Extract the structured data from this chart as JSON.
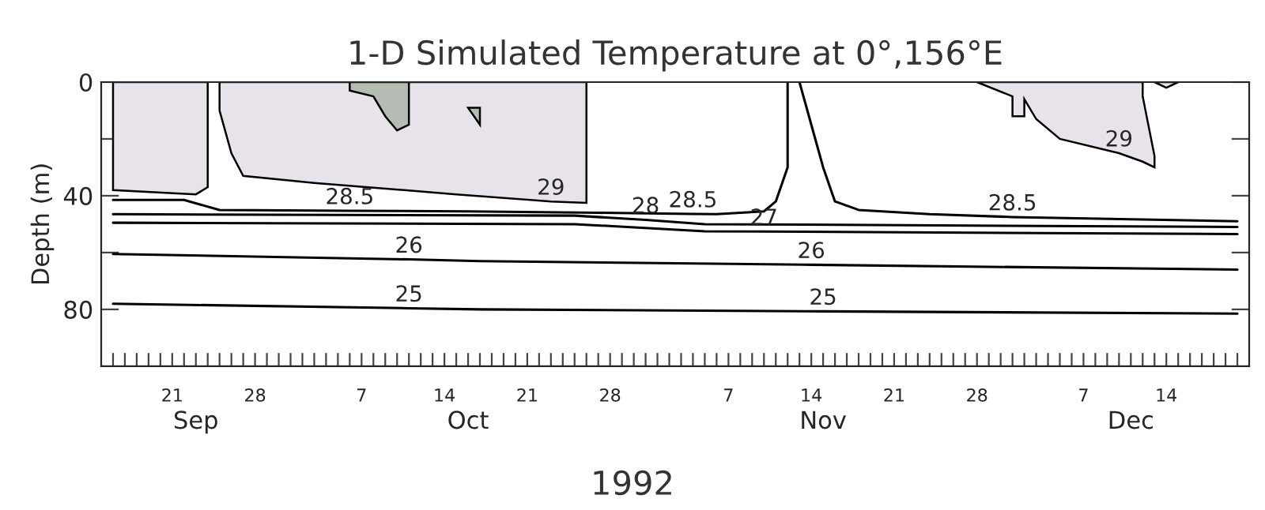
{
  "chart_data": {
    "type": "line",
    "title": "1-D Simulated Temperature at 0°,156°E",
    "xlabel": "1992",
    "ylabel": "Depth (m)",
    "xlim": [
      "1992-09-15",
      "1992-12-21"
    ],
    "ylim": [
      100,
      0
    ],
    "yticks": [
      0,
      {
        "value": 20,
        "label": null
      },
      40,
      {
        "value": 60,
        "label": null
      },
      80
    ],
    "xticks": [
      {
        "value": "1992-09-16",
        "label": null
      },
      {
        "value": "1992-09-17",
        "label": null
      },
      {
        "value": "1992-09-18",
        "label": null
      },
      {
        "value": "1992-09-19",
        "label": null
      },
      {
        "value": "1992-09-20",
        "label": null
      },
      {
        "value": "1992-09-21",
        "label": "21"
      },
      {
        "value": "1992-09-22",
        "label": null
      },
      {
        "value": "1992-09-23",
        "label": null
      },
      {
        "value": "1992-09-24",
        "label": null
      },
      {
        "value": "1992-09-25",
        "label": null
      },
      {
        "value": "1992-09-26",
        "label": null
      },
      {
        "value": "1992-09-27",
        "label": null
      },
      {
        "value": "1992-09-28",
        "label": "28"
      },
      {
        "value": "1992-09-29",
        "label": null
      },
      {
        "value": "1992-09-30",
        "label": null
      },
      {
        "value": "1992-10-01",
        "label": null
      },
      {
        "value": "1992-10-02",
        "label": null
      },
      {
        "value": "1992-10-03",
        "label": null
      },
      {
        "value": "1992-10-04",
        "label": null
      },
      {
        "value": "1992-10-05",
        "label": null
      },
      {
        "value": "1992-10-06",
        "label": null
      },
      {
        "value": "1992-10-07",
        "label": "7"
      },
      {
        "value": "1992-10-08",
        "label": null
      },
      {
        "value": "1992-10-09",
        "label": null
      },
      {
        "value": "1992-10-10",
        "label": null
      },
      {
        "value": "1992-10-11",
        "label": null
      },
      {
        "value": "1992-10-12",
        "label": null
      },
      {
        "value": "1992-10-13",
        "label": null
      },
      {
        "value": "1992-10-14",
        "label": "14"
      },
      {
        "value": "1992-10-15",
        "label": null
      },
      {
        "value": "1992-10-16",
        "label": null
      },
      {
        "value": "1992-10-17",
        "label": null
      },
      {
        "value": "1992-10-18",
        "label": null
      },
      {
        "value": "1992-10-19",
        "label": null
      },
      {
        "value": "1992-10-20",
        "label": null
      },
      {
        "value": "1992-10-21",
        "label": "21"
      },
      {
        "value": "1992-10-22",
        "label": null
      },
      {
        "value": "1992-10-23",
        "label": null
      },
      {
        "value": "1992-10-24",
        "label": null
      },
      {
        "value": "1992-10-25",
        "label": null
      },
      {
        "value": "1992-10-26",
        "label": null
      },
      {
        "value": "1992-10-27",
        "label": null
      },
      {
        "value": "1992-10-28",
        "label": "28"
      },
      {
        "value": "1992-10-29",
        "label": null
      },
      {
        "value": "1992-10-30",
        "label": null
      },
      {
        "value": "1992-10-31",
        "label": null
      },
      {
        "value": "1992-11-01",
        "label": null
      },
      {
        "value": "1992-11-02",
        "label": null
      },
      {
        "value": "1992-11-03",
        "label": null
      },
      {
        "value": "1992-11-04",
        "label": null
      },
      {
        "value": "1992-11-05",
        "label": null
      },
      {
        "value": "1992-11-06",
        "label": null
      },
      {
        "value": "1992-11-07",
        "label": "7"
      },
      {
        "value": "1992-11-08",
        "label": null
      },
      {
        "value": "1992-11-09",
        "label": null
      },
      {
        "value": "1992-11-10",
        "label": null
      },
      {
        "value": "1992-11-11",
        "label": null
      },
      {
        "value": "1992-11-12",
        "label": null
      },
      {
        "value": "1992-11-13",
        "label": null
      },
      {
        "value": "1992-11-14",
        "label": "14"
      },
      {
        "value": "1992-11-15",
        "label": null
      },
      {
        "value": "1992-11-16",
        "label": null
      },
      {
        "value": "1992-11-17",
        "label": null
      },
      {
        "value": "1992-11-18",
        "label": null
      },
      {
        "value": "1992-11-19",
        "label": null
      },
      {
        "value": "1992-11-20",
        "label": null
      },
      {
        "value": "1992-11-21",
        "label": "21"
      },
      {
        "value": "1992-11-22",
        "label": null
      },
      {
        "value": "1992-11-23",
        "label": null
      },
      {
        "value": "1992-11-24",
        "label": null
      },
      {
        "value": "1992-11-25",
        "label": null
      },
      {
        "value": "1992-11-26",
        "label": null
      },
      {
        "value": "1992-11-27",
        "label": null
      },
      {
        "value": "1992-11-28",
        "label": "28"
      },
      {
        "value": "1992-11-29",
        "label": null
      },
      {
        "value": "1992-11-30",
        "label": null
      },
      {
        "value": "1992-12-01",
        "label": null
      },
      {
        "value": "1992-12-02",
        "label": null
      },
      {
        "value": "1992-12-03",
        "label": null
      },
      {
        "value": "1992-12-04",
        "label": null
      },
      {
        "value": "1992-12-05",
        "label": null
      },
      {
        "value": "1992-12-06",
        "label": null
      },
      {
        "value": "1992-12-07",
        "label": "7"
      },
      {
        "value": "1992-12-08",
        "label": null
      },
      {
        "value": "1992-12-09",
        "label": null
      },
      {
        "value": "1992-12-10",
        "label": null
      },
      {
        "value": "1992-12-11",
        "label": null
      },
      {
        "value": "1992-12-12",
        "label": null
      },
      {
        "value": "1992-12-13",
        "label": null
      },
      {
        "value": "1992-12-14",
        "label": "14"
      },
      {
        "value": "1992-12-15",
        "label": null
      },
      {
        "value": "1992-12-16",
        "label": null
      },
      {
        "value": "1992-12-17",
        "label": null
      },
      {
        "value": "1992-12-18",
        "label": null
      },
      {
        "value": "1992-12-19",
        "label": null
      },
      {
        "value": "1992-12-20",
        "label": null
      }
    ],
    "x2lim": [
      "1992-09-15",
      "1992-12-21"
    ],
    "x2ticks": [
      {
        "value": "1992-09-23",
        "label": "Sep"
      },
      {
        "value": "1992-10-16",
        "label": "Oct"
      },
      {
        "value": "1992-11-15",
        "label": "Nov"
      },
      {
        "value": "1992-12-11",
        "label": "Dec"
      }
    ],
    "series": [
      {
        "type": "area",
        "color": "#e8e3ea",
        "x": [
          "1992-09-16",
          "1992-09-16",
          "1992-09-23",
          "1992-09-24",
          "1992-09-24"
        ],
        "values": [
          0,
          38,
          39.5,
          37,
          0
        ]
      },
      {
        "type": "area",
        "color": "#e8e3ea",
        "x": [
          "1992-09-25",
          "1992-09-25",
          "1992-09-26",
          "1992-09-27",
          "1992-10-03",
          "1992-10-15",
          "1992-10-23",
          "1992-10-26",
          "1992-10-26"
        ],
        "values": [
          0,
          10,
          25,
          33,
          35.5,
          39.5,
          42,
          42.5,
          0
        ]
      },
      {
        "type": "area",
        "color": "#b4bcb4",
        "x": [
          "1992-10-06",
          "1992-10-06",
          "1992-10-08",
          "1992-10-09",
          "1992-10-10",
          "1992-10-11",
          "1992-10-11"
        ],
        "values": [
          0,
          3,
          5,
          12,
          17,
          15,
          0
        ]
      },
      {
        "type": "area",
        "color": "#b4bcb4",
        "x": [
          "1992-10-16",
          "1992-10-17",
          "1992-10-17"
        ],
        "values": [
          9,
          9,
          15
        ]
      },
      {
        "type": "area",
        "color": "#e8e3ea",
        "x": [
          "1992-11-28",
          "1992-12-01",
          "1992-12-01",
          "1992-12-02",
          "1992-12-02",
          "1992-12-03",
          "1992-12-05",
          "1992-12-10",
          "1992-12-12",
          "1992-12-13",
          "1992-12-13",
          "1992-12-12",
          "1992-12-12"
        ],
        "values": [
          0,
          5,
          12,
          12,
          6,
          13,
          20,
          25,
          28,
          30,
          26,
          5,
          0
        ]
      },
      {
        "type": "area",
        "color": "#e8e3ea",
        "x": [
          "1992-12-13",
          "1992-12-14",
          "1992-12-15"
        ],
        "values": [
          0,
          2,
          0
        ]
      },
      {
        "color": "#000000",
        "x": [
          "1992-09-16",
          "1992-09-22",
          "1992-09-25",
          "1992-10-06",
          "1992-10-16",
          "1992-10-27",
          "1992-11-04",
          "1992-11-06",
          "1992-11-10",
          "1992-11-11",
          "1992-11-12",
          "1992-11-12"
        ],
        "values": [
          41.5,
          41.5,
          45,
          45.3,
          45.5,
          46,
          46.4,
          46.5,
          45.5,
          42,
          30,
          0
        ]
      },
      {
        "color": "#000000",
        "x": [
          "1992-11-13",
          "1992-11-14",
          "1992-11-15",
          "1992-11-16",
          "1992-11-18",
          "1992-11-24",
          "1992-12-01",
          "1992-12-20"
        ],
        "values": [
          0,
          15,
          30,
          42,
          45,
          46.5,
          47.5,
          49
        ]
      },
      {
        "color": "#000000",
        "x": [
          "1992-09-16",
          "1992-10-25",
          "1992-10-31",
          "1992-11-05",
          "1992-12-20"
        ],
        "values": [
          46.5,
          47,
          48.5,
          50,
          51
        ]
      },
      {
        "color": "#000000",
        "x": [
          "1992-09-16",
          "1992-10-25",
          "1992-11-05",
          "1992-11-10",
          "1992-12-20"
        ],
        "values": [
          49.5,
          50,
          52.5,
          52.6,
          53.5
        ]
      },
      {
        "color": "#000000",
        "x": [
          "1992-09-16",
          "1992-10-11",
          "1992-10-17",
          "1992-11-14",
          "1992-12-20"
        ],
        "values": [
          60.5,
          62.4,
          63,
          64.3,
          66
        ]
      },
      {
        "color": "#000000",
        "x": [
          "1992-09-16",
          "1992-10-11",
          "1992-10-17",
          "1992-11-15",
          "1992-12-20"
        ],
        "values": [
          78,
          79.6,
          80,
          80.7,
          81.5
        ]
      }
    ],
    "annotations": [
      {
        "text": "28.5",
        "x": "1992-10-06",
        "y": 45.3
      },
      {
        "text": "29",
        "x": "1992-10-23",
        "y": 42
      },
      {
        "text": "28",
        "x": "1992-10-31",
        "y": 48.5
      },
      {
        "text": "28.5",
        "x": "1992-11-04",
        "y": 46.4
      },
      {
        "text": "27",
        "x": "1992-11-10",
        "y": 52.6
      },
      {
        "text": "28.5",
        "x": "1992-12-01",
        "y": 47.5
      },
      {
        "text": "29",
        "x": "1992-12-10",
        "y": 25
      },
      {
        "text": "26",
        "x": "1992-10-11",
        "y": 62.4
      },
      {
        "text": "26",
        "x": "1992-11-14",
        "y": 64.3
      },
      {
        "text": "25",
        "x": "1992-10-11",
        "y": 79.6
      },
      {
        "text": "25",
        "x": "1992-11-15",
        "y": 80.7
      }
    ]
  }
}
